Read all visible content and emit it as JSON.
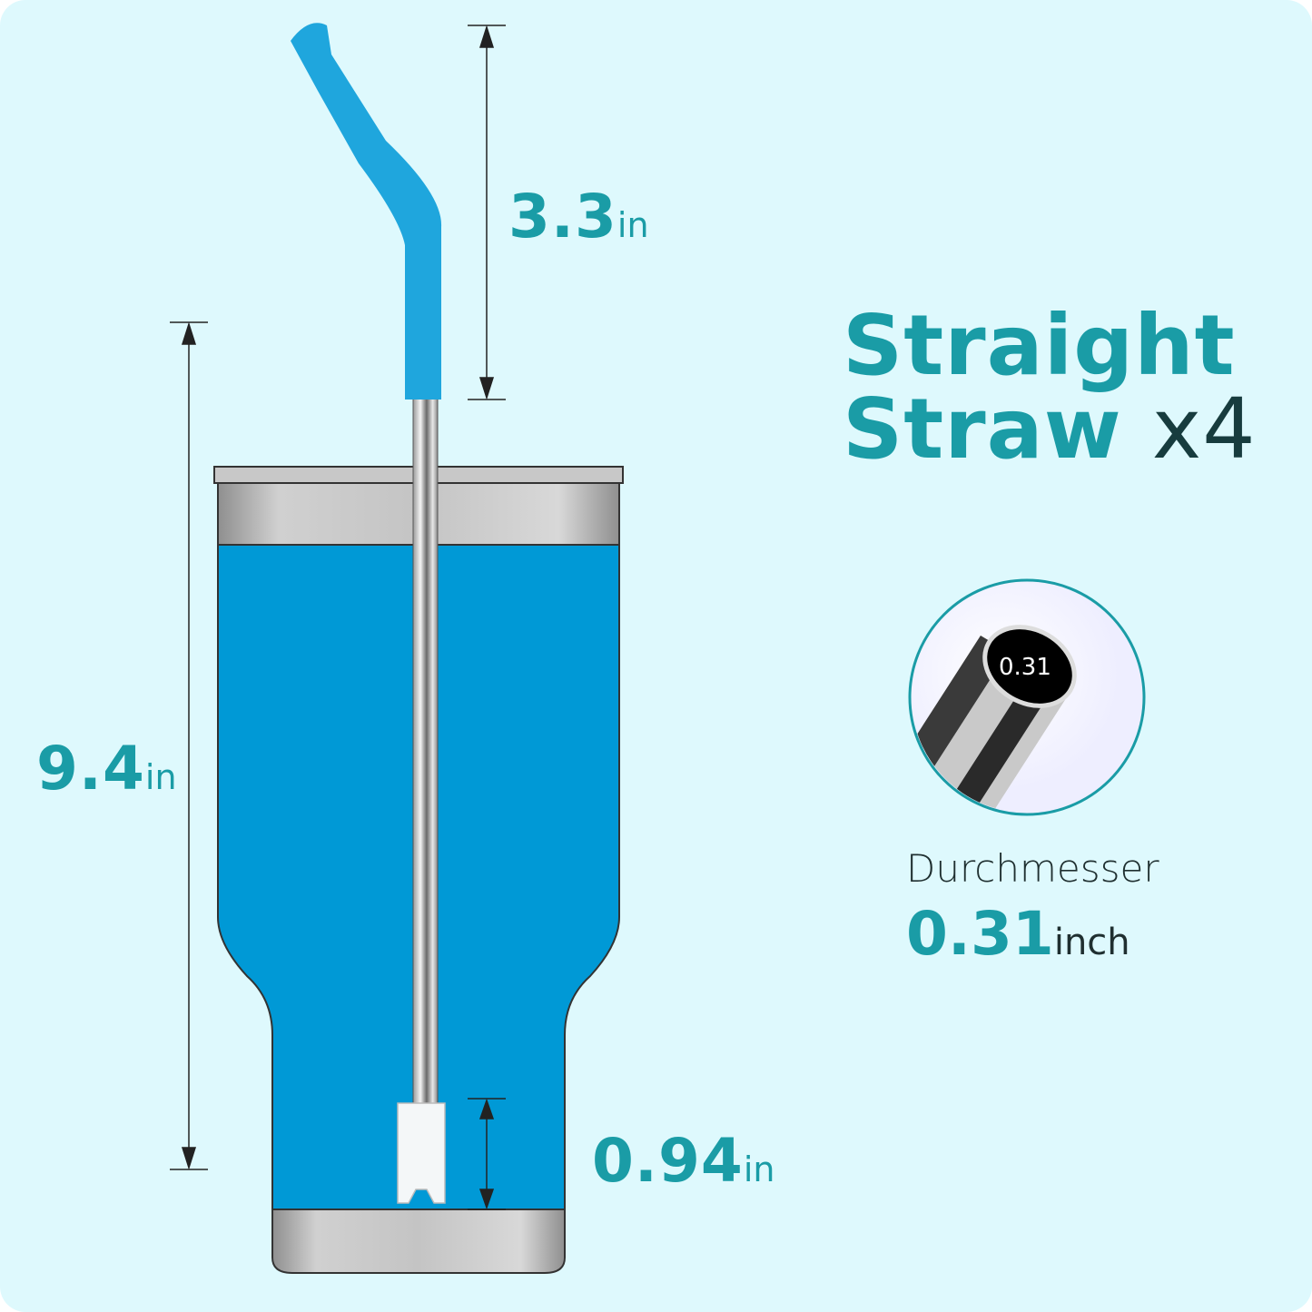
{
  "title": {
    "line1": "Straight",
    "line2": "Straw",
    "count": "x4"
  },
  "dimensions": {
    "bent_tip": {
      "value": "3.3",
      "unit": "in"
    },
    "total": {
      "value": "9.4",
      "unit": "in"
    },
    "end_tip": {
      "value": "0.94",
      "unit": "in"
    }
  },
  "diameter": {
    "label": "Durchmesser",
    "value": "0.31",
    "unit": "inch",
    "badge": "0.31"
  },
  "colors": {
    "accent": "#1a9ca6",
    "background": "#def9fd",
    "tumbler_blue": "#0099d6",
    "silicone_blue": "#1fa6dd"
  }
}
